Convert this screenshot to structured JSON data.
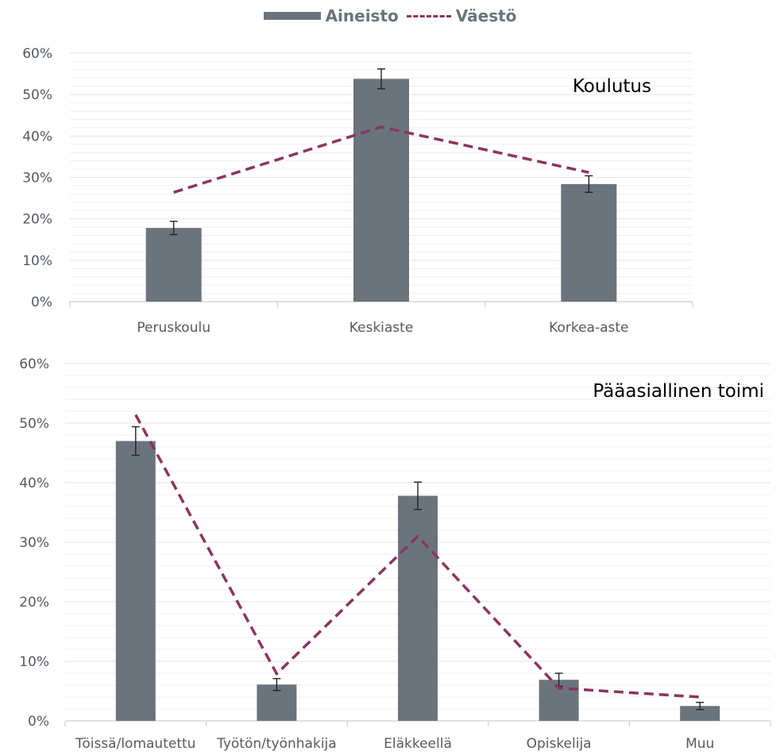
{
  "legend": {
    "bar_label": "Aineisto",
    "line_label": "Väestö"
  },
  "colors": {
    "bar": "#6b747d",
    "line": "#8b3462",
    "grid": "#e3e3e3",
    "axis": "#d0d0d0",
    "error_bar": "#222222"
  },
  "chart_data": [
    {
      "type": "bar",
      "title": "Koulutus",
      "categories": [
        "Peruskoulu",
        "Keskiaste",
        "Korkea-aste"
      ],
      "series": [
        {
          "name": "Aineisto",
          "type": "bar",
          "values": [
            17.8,
            53.8,
            28.4
          ],
          "error": [
            1.6,
            2.4,
            2.0
          ]
        },
        {
          "name": "Väestö",
          "type": "line",
          "style": "dashed",
          "values": [
            26.4,
            42.2,
            31.2
          ]
        }
      ],
      "ylim": [
        0,
        60
      ],
      "yticks": [
        0,
        10,
        20,
        30,
        40,
        50,
        60
      ],
      "ytick_labels": [
        "0%",
        "10%",
        "20%",
        "30%",
        "40%",
        "50%",
        "60%"
      ],
      "grid": true,
      "legend": "top-center"
    },
    {
      "type": "bar",
      "title": "Pääasiallinen toimi",
      "categories": [
        "Töissä/lomautettu",
        "Työtön/työnhakija",
        "Eläkkeellä",
        "Opiskelija",
        "Muu"
      ],
      "series": [
        {
          "name": "Aineisto",
          "type": "bar",
          "values": [
            47.0,
            6.1,
            37.8,
            6.9,
            2.5
          ],
          "error": [
            2.4,
            1.0,
            2.3,
            1.1,
            0.6
          ]
        },
        {
          "name": "Väestö",
          "type": "line",
          "style": "dashed",
          "values": [
            51.4,
            7.9,
            31.0,
            5.5,
            4.0
          ]
        }
      ],
      "ylim": [
        0,
        60
      ],
      "yticks": [
        0,
        10,
        20,
        30,
        40,
        50,
        60
      ],
      "ytick_labels": [
        "0%",
        "10%",
        "20%",
        "30%",
        "40%",
        "50%",
        "60%"
      ],
      "grid": true
    }
  ]
}
